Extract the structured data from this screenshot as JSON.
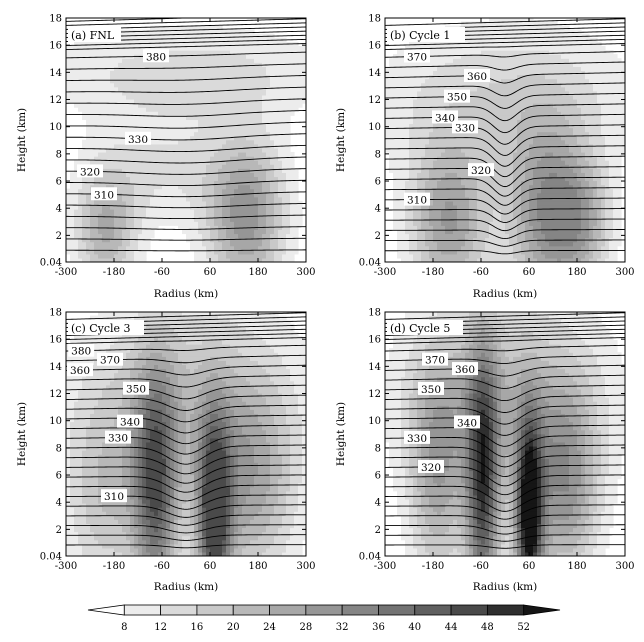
{
  "chart_data": [
    {
      "type": "heatmap",
      "panel_label": "(a) FNL",
      "xlabel": "Radius (km)",
      "ylabel": "Height (km)",
      "xlim": [
        -300,
        300
      ],
      "ylim": [
        0.04,
        18
      ],
      "xticks": [
        "-300",
        "-180",
        "-60",
        "60",
        "180",
        "300"
      ],
      "yticks": [
        "0.04",
        "2",
        "4",
        "6",
        "8",
        "10",
        "12",
        "14",
        "16",
        "18"
      ],
      "shading": {
        "max_level": 28,
        "blobs": [
          {
            "x": -200,
            "z": 2.5,
            "sx": 55,
            "sz": 3.2,
            "w": 20
          },
          {
            "x": 150,
            "z": 3.5,
            "sx": 70,
            "sz": 4,
            "w": 26
          },
          {
            "x": 0,
            "z": 14,
            "sx": 260,
            "sz": 2.5,
            "w": 10
          },
          {
            "x": -60,
            "z": 7,
            "sx": 120,
            "sz": 3,
            "w": 8
          }
        ]
      },
      "contours": {
        "base_levels": [
          300,
          301.5,
          303,
          305,
          307.5,
          310,
          314,
          320,
          324,
          327,
          330,
          334,
          340,
          345,
          350,
          357,
          368,
          380
        ],
        "top_count": 9,
        "dip_width_km": 120,
        "dip_max_km": 0.35,
        "labels": [
          {
            "text": "310",
            "x": -205,
            "level": 310
          },
          {
            "text": "320",
            "x": -240,
            "level": 320
          },
          {
            "text": "330",
            "x": -120,
            "level": 330
          },
          {
            "text": "380",
            "x": -75,
            "level": 380
          }
        ]
      }
    },
    {
      "type": "heatmap",
      "panel_label": "(b) Cycle 1",
      "xlabel": "Radius (km)",
      "ylabel": "Height (km)",
      "xlim": [
        -300,
        300
      ],
      "ylim": [
        0.04,
        18
      ],
      "xticks": [
        "-300",
        "-180",
        "-60",
        "60",
        "180",
        "300"
      ],
      "yticks": [
        "0.04",
        "2",
        "4",
        "6",
        "8",
        "10",
        "12",
        "14",
        "16",
        "18"
      ],
      "shading": {
        "max_level": 32,
        "blobs": [
          {
            "x": -140,
            "z": 3,
            "sx": 70,
            "sz": 4,
            "w": 24
          },
          {
            "x": 110,
            "z": 3.5,
            "sx": 70,
            "sz": 4.5,
            "w": 28
          },
          {
            "x": 200,
            "z": 3,
            "sx": 50,
            "sz": 3,
            "w": 14
          },
          {
            "x": 0,
            "z": 12,
            "sx": 220,
            "sz": 4,
            "w": 12
          }
        ]
      },
      "contours": {
        "base_levels": [
          300,
          301.5,
          303,
          305,
          307.5,
          310,
          313,
          316,
          320,
          324,
          328,
          332,
          336,
          340,
          345,
          350,
          355,
          360,
          365,
          370
        ],
        "top_count": 7,
        "dip_width_km": 28,
        "dip_max_km": 1.4,
        "labels": [
          {
            "text": "310",
            "x": -220,
            "level": 310
          },
          {
            "text": "320",
            "x": -60,
            "level": 320
          },
          {
            "text": "330",
            "x": -100,
            "level": 330
          },
          {
            "text": "340",
            "x": -150,
            "level": 340
          },
          {
            "text": "350",
            "x": -120,
            "level": 350
          },
          {
            "text": "360",
            "x": -70,
            "level": 360
          },
          {
            "text": "370",
            "x": -220,
            "level": 370
          }
        ]
      }
    },
    {
      "type": "heatmap",
      "panel_label": "(c) Cycle 3",
      "xlabel": "Radius (km)",
      "ylabel": "Height (km)",
      "xlim": [
        -300,
        300
      ],
      "ylim": [
        0.04,
        18
      ],
      "xticks": [
        "-300",
        "-180",
        "-60",
        "60",
        "180",
        "300"
      ],
      "yticks": [
        "0.04",
        "2",
        "4",
        "6",
        "8",
        "10",
        "12",
        "14",
        "16",
        "18"
      ],
      "shading": {
        "max_level": 44,
        "blobs": [
          {
            "x": -75,
            "z": 5,
            "sx": 40,
            "sz": 6,
            "w": 36
          },
          {
            "x": 70,
            "z": 3,
            "sx": 30,
            "sz": 5,
            "w": 42
          },
          {
            "x": 160,
            "z": 5,
            "sx": 80,
            "sz": 5,
            "w": 20
          },
          {
            "x": -200,
            "z": 4,
            "sx": 70,
            "sz": 5,
            "w": 14
          },
          {
            "x": 0,
            "z": 12,
            "sx": 200,
            "sz": 5,
            "w": 14
          }
        ]
      },
      "contours": {
        "base_levels": [
          300,
          301.5,
          303,
          305,
          307.5,
          310,
          313,
          316,
          320,
          323,
          326,
          330,
          334,
          338,
          342,
          346,
          350,
          355,
          360,
          370,
          380
        ],
        "top_count": 7,
        "dip_width_km": 45,
        "dip_max_km": 1.3,
        "labels": [
          {
            "text": "310",
            "x": -180,
            "level": 310
          },
          {
            "text": "330",
            "x": -170,
            "level": 330
          },
          {
            "text": "340",
            "x": -140,
            "level": 340
          },
          {
            "text": "350",
            "x": -125,
            "level": 350
          },
          {
            "text": "360",
            "x": -265,
            "level": 360
          },
          {
            "text": "370",
            "x": -190,
            "level": 370
          },
          {
            "text": "380",
            "x": -262,
            "level": 380
          }
        ]
      }
    },
    {
      "type": "heatmap",
      "panel_label": "(d) Cycle 5",
      "xlabel": "Radius (km)",
      "ylabel": "Height (km)",
      "xlim": [
        -300,
        300
      ],
      "ylim": [
        0.04,
        18
      ],
      "xticks": [
        "-300",
        "-180",
        "-60",
        "60",
        "180",
        "300"
      ],
      "yticks": [
        "0.04",
        "2",
        "4",
        "6",
        "8",
        "10",
        "12",
        "14",
        "16",
        "18"
      ],
      "shading": {
        "max_level": 52,
        "blobs": [
          {
            "x": -55,
            "z": 5,
            "sx": 30,
            "sz": 7,
            "w": 40
          },
          {
            "x": 60,
            "z": 3,
            "sx": 25,
            "sz": 5,
            "w": 50
          },
          {
            "x": -170,
            "z": 6,
            "sx": 50,
            "sz": 6,
            "w": 20
          },
          {
            "x": 150,
            "z": 5,
            "sx": 60,
            "sz": 5,
            "w": 24
          },
          {
            "x": 0,
            "z": 12,
            "sx": 180,
            "sz": 5,
            "w": 16
          }
        ]
      },
      "contours": {
        "base_levels": [
          300,
          301.5,
          303,
          305,
          307.5,
          310,
          313,
          316,
          320,
          323,
          326,
          330,
          334,
          338,
          342,
          346,
          350,
          355,
          360,
          370,
          380
        ],
        "top_count": 7,
        "dip_width_km": 40,
        "dip_max_km": 1.5,
        "labels": [
          {
            "text": "320",
            "x": -185,
            "level": 320
          },
          {
            "text": "330",
            "x": -220,
            "level": 330
          },
          {
            "text": "340",
            "x": -95,
            "level": 340
          },
          {
            "text": "350",
            "x": -185,
            "level": 350
          },
          {
            "text": "360",
            "x": -100,
            "level": 360
          },
          {
            "text": "370",
            "x": -175,
            "level": 370
          }
        ]
      }
    }
  ],
  "colorbar": {
    "levels": [
      "8",
      "12",
      "16",
      "20",
      "24",
      "28",
      "32",
      "36",
      "40",
      "44",
      "48",
      "52"
    ],
    "colors": [
      "#ffffff",
      "#ececec",
      "#dadada",
      "#c9c9c9",
      "#b8b8b8",
      "#a7a7a7",
      "#969696",
      "#858585",
      "#737373",
      "#606060",
      "#4a4a4a",
      "#2f2f2f",
      "#151515"
    ]
  }
}
